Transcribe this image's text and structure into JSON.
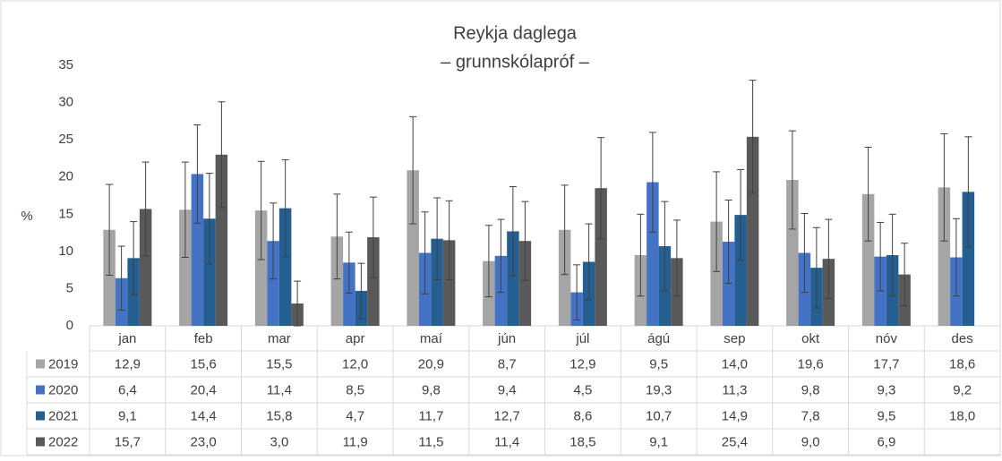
{
  "chart_data": {
    "type": "bar",
    "title": "Reykja daglega",
    "subtitle": "– grunnskólapróf –",
    "y_label": "%",
    "categories": [
      "jan",
      "feb",
      "mar",
      "apr",
      "maí",
      "jún",
      "júl",
      "ágú",
      "sep",
      "okt",
      "nóv",
      "des"
    ],
    "ylim": [
      0,
      35
    ],
    "yticks": [
      0,
      5,
      10,
      15,
      20,
      25,
      30,
      35
    ],
    "grid": false,
    "series": [
      {
        "name": "2019",
        "color": "#a5a5a5",
        "values": [
          12.9,
          15.6,
          15.5,
          12.0,
          20.9,
          8.7,
          12.9,
          9.5,
          14.0,
          19.6,
          17.7,
          18.6
        ],
        "value_labels": [
          "12,9",
          "15,6",
          "15,5",
          "12,0",
          "20,9",
          "8,7",
          "12,9",
          "9,5",
          "14,0",
          "19,6",
          "17,7",
          "18,6"
        ],
        "errors": [
          6.1,
          6.4,
          6.6,
          5.7,
          7.2,
          4.8,
          6.0,
          5.5,
          6.7,
          6.6,
          6.3,
          7.2
        ]
      },
      {
        "name": "2020",
        "color": "#4472c4",
        "values": [
          6.4,
          20.4,
          11.4,
          8.5,
          9.8,
          9.4,
          4.5,
          19.3,
          11.3,
          9.8,
          9.3,
          9.2
        ],
        "value_labels": [
          "6,4",
          "20,4",
          "11,4",
          "8,5",
          "9,8",
          "9,4",
          "4,5",
          "19,3",
          "11,3",
          "9,8",
          "9,3",
          "9,2"
        ],
        "errors": [
          4.3,
          6.6,
          5.1,
          4.1,
          5.5,
          4.9,
          3.7,
          6.7,
          5.6,
          5.3,
          4.6,
          5.2
        ]
      },
      {
        "name": "2021",
        "color": "#255e91",
        "values": [
          9.1,
          14.4,
          15.8,
          4.7,
          11.7,
          12.7,
          8.6,
          10.7,
          14.9,
          7.8,
          9.5,
          18.0
        ],
        "value_labels": [
          "9,1",
          "14,4",
          "15,8",
          "4,7",
          "11,7",
          "12,7",
          "8,6",
          "10,7",
          "14,9",
          "7,8",
          "9,5",
          "18,0"
        ],
        "errors": [
          4.9,
          6.1,
          6.5,
          3.7,
          5.5,
          6.0,
          5.1,
          6.0,
          6.1,
          5.4,
          5.5,
          7.4
        ]
      },
      {
        "name": "2022",
        "color": "#595959",
        "values": [
          15.7,
          23.0,
          3.0,
          11.9,
          11.5,
          11.4,
          18.5,
          9.1,
          25.4,
          9.0,
          6.9,
          null
        ],
        "value_labels": [
          "15,7",
          "23,0",
          "3,0",
          "11,9",
          "11,5",
          "11,4",
          "18,5",
          "9,1",
          "25,4",
          "9,0",
          "6,9",
          null
        ],
        "errors": [
          6.3,
          7.1,
          3.0,
          5.4,
          5.3,
          5.3,
          6.8,
          5.1,
          7.6,
          5.3,
          4.2,
          null
        ]
      }
    ]
  }
}
